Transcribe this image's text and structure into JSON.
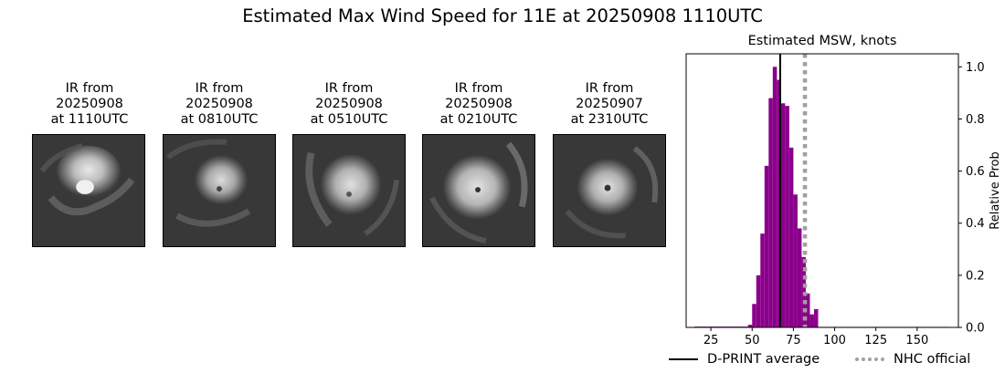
{
  "figure_title": "Estimated Max Wind Speed for 11E at 20250908 1110UTC",
  "ir_panels": [
    {
      "title": "IR from\n20250908\nat 1110UTC"
    },
    {
      "title": "IR from\n20250908\nat 0810UTC"
    },
    {
      "title": "IR from\n20250908\nat 0510UTC"
    },
    {
      "title": "IR from\n20250908\nat 0210UTC"
    },
    {
      "title": "IR from\n20250907\nat 2310UTC"
    }
  ],
  "chart_data": {
    "type": "bar",
    "title": "Estimated MSW, knots",
    "xlabel": "",
    "ylabel": "Relative Prob",
    "xlim": [
      10,
      175
    ],
    "ylim": [
      0,
      1.05
    ],
    "x_ticks": [
      "25",
      "50",
      "75",
      "100",
      "125",
      "150"
    ],
    "y_ticks": [
      "0.0",
      "0.2",
      "0.4",
      "0.6",
      "0.8",
      "1.0"
    ],
    "bar_color": "#8b008b",
    "bin_width": 2.5,
    "bins": [
      {
        "x0": 15,
        "x1": 47.5,
        "value": 0.003
      },
      {
        "x0": 47.5,
        "x1": 50,
        "value": 0.01
      },
      {
        "x0": 50,
        "x1": 52.5,
        "value": 0.09
      },
      {
        "x0": 52.5,
        "x1": 55,
        "value": 0.2
      },
      {
        "x0": 55,
        "x1": 57.5,
        "value": 0.36
      },
      {
        "x0": 57.5,
        "x1": 60,
        "value": 0.62
      },
      {
        "x0": 60,
        "x1": 62.5,
        "value": 0.88
      },
      {
        "x0": 62.5,
        "x1": 65,
        "value": 1.0
      },
      {
        "x0": 65,
        "x1": 67.5,
        "value": 0.95
      },
      {
        "x0": 67.5,
        "x1": 70,
        "value": 0.86
      },
      {
        "x0": 70,
        "x1": 72.5,
        "value": 0.85
      },
      {
        "x0": 72.5,
        "x1": 75,
        "value": 0.69
      },
      {
        "x0": 75,
        "x1": 77.5,
        "value": 0.51
      },
      {
        "x0": 77.5,
        "x1": 80,
        "value": 0.38
      },
      {
        "x0": 80,
        "x1": 82.5,
        "value": 0.27
      },
      {
        "x0": 82.5,
        "x1": 85,
        "value": 0.13
      },
      {
        "x0": 85,
        "x1": 87.5,
        "value": 0.05
      },
      {
        "x0": 87.5,
        "x1": 90,
        "value": 0.07
      },
      {
        "x0": 90,
        "x1": 170,
        "value": 0.002
      }
    ],
    "dprint_average": 67,
    "nhc_official": 82,
    "legend": [
      {
        "label": "D-PRINT average",
        "color": "#000000",
        "style": "solid"
      },
      {
        "label": "NHC official",
        "color": "#a0a0a0",
        "style": "dotted"
      }
    ],
    "legend_placement": "bottom-center"
  }
}
